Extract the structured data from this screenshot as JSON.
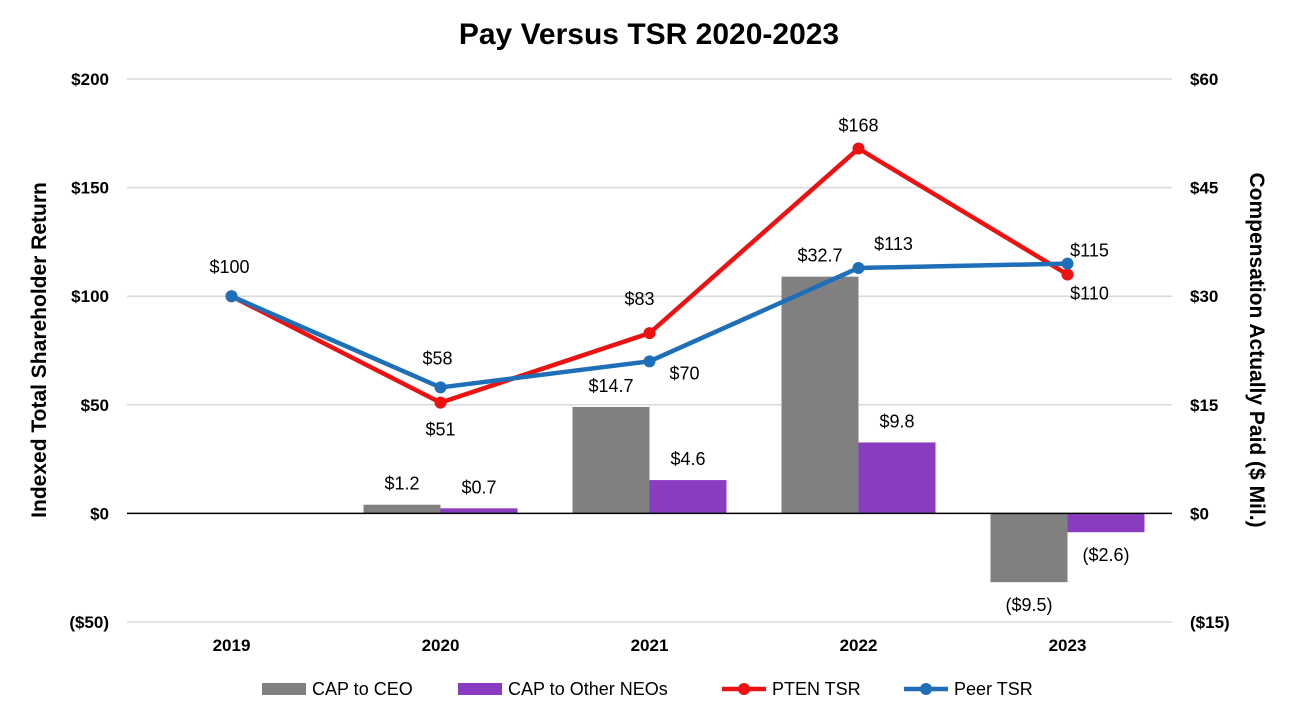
{
  "chart_data": {
    "type": "bar",
    "title": "Pay Versus TSR 2020-2023",
    "ylabel_left": "Indexed Total Shareholder Return",
    "ylabel_right": "Compensation Actually Paid ($ Mil.)",
    "categories": [
      "2019",
      "2020",
      "2021",
      "2022",
      "2023"
    ],
    "ylim_left": [
      -50,
      200
    ],
    "ylim_right": [
      -15,
      60
    ],
    "left_ticks": [
      "($50)",
      "$0",
      "$50",
      "$100",
      "$150",
      "$200"
    ],
    "left_tick_values": [
      -50,
      0,
      50,
      100,
      150,
      200
    ],
    "right_ticks": [
      "($15)",
      "$0",
      "$15",
      "$30",
      "$45",
      "$60"
    ],
    "right_tick_values": [
      -15,
      0,
      15,
      30,
      45,
      60
    ],
    "grid": true,
    "legend_position": "bottom",
    "series": [
      {
        "name": "CAP to CEO",
        "kind": "bar",
        "axis": "right",
        "color": "#808080",
        "values": [
          null,
          1.2,
          14.7,
          32.7,
          -9.5
        ],
        "labels": [
          "",
          "$1.2",
          "$14.7",
          "$32.7",
          "($9.5)"
        ]
      },
      {
        "name": "CAP to Other NEOs",
        "kind": "bar",
        "axis": "right",
        "color": "#8a3cc0",
        "values": [
          null,
          0.7,
          4.6,
          9.8,
          -2.6
        ],
        "labels": [
          "",
          "$0.7",
          "$4.6",
          "$9.8",
          "($2.6)"
        ]
      },
      {
        "name": "PTEN TSR",
        "kind": "line",
        "axis": "left",
        "color": "#ee1111",
        "values": [
          100,
          51,
          83,
          168,
          110
        ],
        "labels": [
          "",
          "$51",
          "$83",
          "$168",
          "$110"
        ]
      },
      {
        "name": "Peer TSR",
        "kind": "line",
        "axis": "left",
        "color": "#1f6fb8",
        "values": [
          100,
          58,
          70,
          113,
          115
        ],
        "labels": [
          "$100",
          "$58",
          "$70",
          "$113",
          "$115"
        ]
      }
    ],
    "negative_label_color": "#e31a1a"
  }
}
